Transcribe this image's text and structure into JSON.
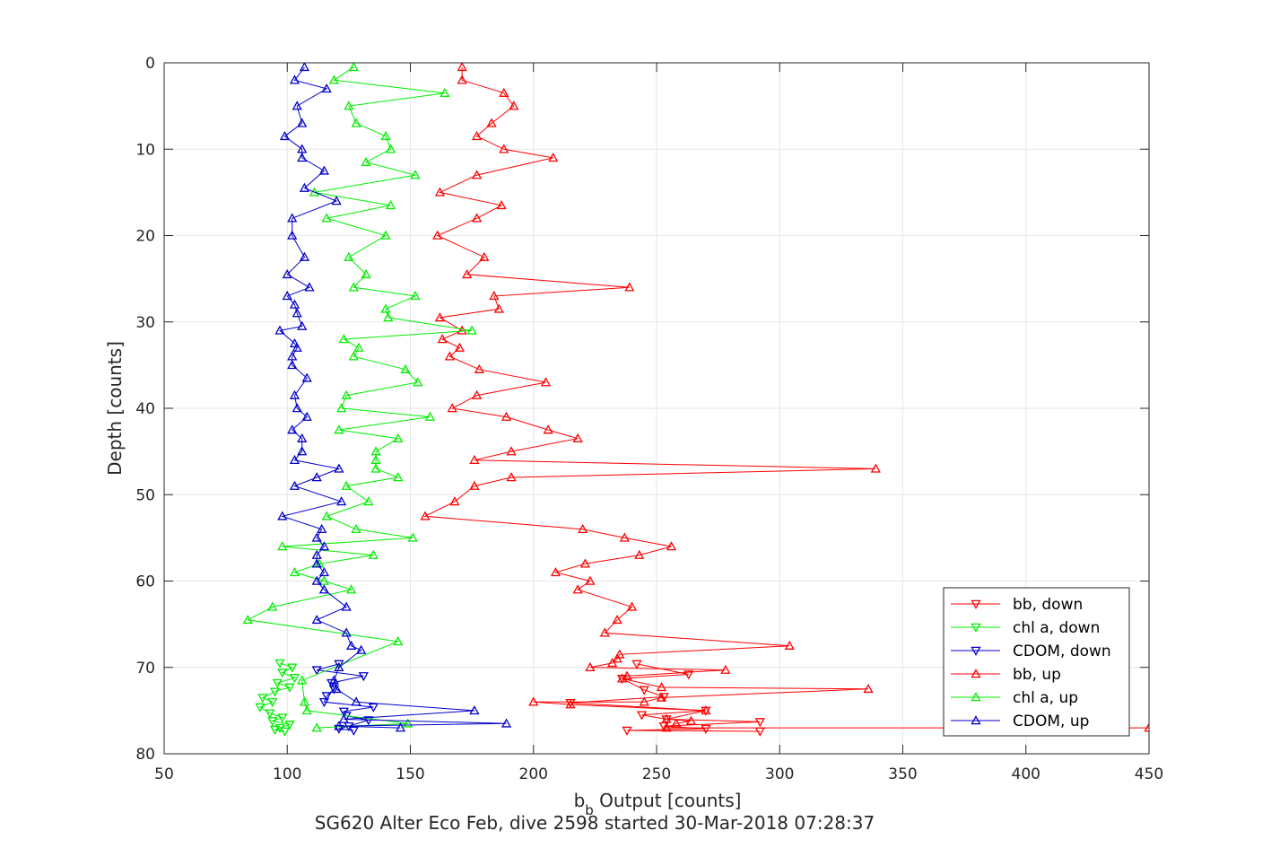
{
  "chart_data": {
    "type": "line",
    "title": "SG620 Alter Eco Feb, dive 2598 started 30-Mar-2018 07:28:37",
    "xlabel": {
      "main": "b",
      "sub": "b",
      "rest": " Output [counts]"
    },
    "ylabel": "Depth [counts]",
    "xlim": [
      50,
      450
    ],
    "ylim": [
      0,
      80
    ],
    "y_reversed": true,
    "grid": true,
    "legend_position": "bottom-right",
    "xticks": [
      "50",
      "100",
      "150",
      "200",
      "250",
      "300",
      "350",
      "400",
      "450"
    ],
    "yticks": [
      "0",
      "10",
      "20",
      "30",
      "40",
      "50",
      "60",
      "70",
      "80"
    ],
    "series": [
      {
        "name": "bb, down",
        "color": "#ff0000",
        "marker": "triangle-down",
        "points": [
          [
            242,
            69.6
          ],
          [
            263,
            70.8
          ],
          [
            236,
            71.3
          ],
          [
            245,
            72.6
          ],
          [
            253,
            73.4
          ],
          [
            215,
            74.1
          ],
          [
            270,
            75.0
          ],
          [
            244,
            75.5
          ],
          [
            254,
            76.0
          ],
          [
            292,
            76.3
          ],
          [
            253,
            76.8
          ],
          [
            270,
            77.1
          ],
          [
            238,
            77.3
          ],
          [
            292,
            77.4
          ]
        ]
      },
      {
        "name": "chl a, down",
        "color": "#00ee00",
        "marker": "triangle-down",
        "points": [
          [
            97,
            69.5
          ],
          [
            102,
            70.0
          ],
          [
            98,
            70.6
          ],
          [
            103,
            71.2
          ],
          [
            96,
            71.8
          ],
          [
            101,
            72.3
          ],
          [
            95,
            72.8
          ],
          [
            90,
            73.5
          ],
          [
            94,
            74.0
          ],
          [
            89,
            74.6
          ],
          [
            93,
            75.3
          ],
          [
            98,
            75.8
          ],
          [
            94,
            76.2
          ],
          [
            101,
            76.6
          ],
          [
            97,
            77.0
          ],
          [
            95,
            77.2
          ],
          [
            99,
            77.4
          ]
        ]
      },
      {
        "name": "CDOM, down",
        "color": "#0000cc",
        "marker": "triangle-down",
        "points": [
          [
            121,
            69.6
          ],
          [
            112,
            70.3
          ],
          [
            131,
            71.0
          ],
          [
            118,
            71.8
          ],
          [
            119,
            72.5
          ],
          [
            116,
            73.3
          ],
          [
            115,
            74.0
          ],
          [
            135,
            74.6
          ],
          [
            123,
            75.1
          ],
          [
            124,
            75.6
          ],
          [
            133,
            76.1
          ],
          [
            125,
            76.8
          ],
          [
            121,
            77.1
          ],
          [
            127,
            77.3
          ]
        ]
      },
      {
        "name": "bb, up",
        "color": "#ff0000",
        "marker": "triangle-up",
        "points": [
          [
            171,
            0.5
          ],
          [
            171,
            2.0
          ],
          [
            188,
            3.5
          ],
          [
            192,
            5.0
          ],
          [
            183,
            7.0
          ],
          [
            177,
            8.5
          ],
          [
            188,
            10.0
          ],
          [
            208,
            11.0
          ],
          [
            177,
            13.0
          ],
          [
            162,
            15.0
          ],
          [
            187,
            16.5
          ],
          [
            177,
            18.0
          ],
          [
            161,
            20.0
          ],
          [
            180,
            22.5
          ],
          [
            173,
            24.5
          ],
          [
            239,
            26.0
          ],
          [
            184,
            27.0
          ],
          [
            186,
            28.5
          ],
          [
            162,
            29.5
          ],
          [
            171,
            31.0
          ],
          [
            163,
            32.0
          ],
          [
            170,
            33.0
          ],
          [
            166,
            34.0
          ],
          [
            178,
            35.5
          ],
          [
            205,
            37.0
          ],
          [
            177,
            38.5
          ],
          [
            167,
            40.0
          ],
          [
            189,
            41.0
          ],
          [
            206,
            42.5
          ],
          [
            218,
            43.5
          ],
          [
            191,
            45.0
          ],
          [
            176,
            46.0
          ],
          [
            339,
            47.0
          ],
          [
            191,
            48.0
          ],
          [
            176,
            49.0
          ],
          [
            168,
            50.8
          ],
          [
            156,
            52.5
          ],
          [
            220,
            54.0
          ],
          [
            237,
            55.0
          ],
          [
            256,
            56.0
          ],
          [
            243,
            57.0
          ],
          [
            221,
            58.0
          ],
          [
            209,
            59.0
          ],
          [
            223,
            60.0
          ],
          [
            218,
            61.0
          ],
          [
            240,
            63.0
          ],
          [
            234,
            64.5
          ],
          [
            229,
            66.0
          ],
          [
            304,
            67.5
          ],
          [
            235,
            68.5
          ],
          [
            234,
            69.0
          ],
          [
            232,
            69.5
          ],
          [
            223,
            70.0
          ],
          [
            278,
            70.3
          ],
          [
            238,
            71.0
          ],
          [
            236,
            71.3
          ],
          [
            252,
            72.3
          ],
          [
            336,
            72.5
          ],
          [
            252,
            73.5
          ],
          [
            245,
            74.0
          ],
          [
            200,
            74.0
          ],
          [
            215,
            74.3
          ],
          [
            270,
            75.0
          ],
          [
            254,
            76.0
          ],
          [
            264,
            76.2
          ],
          [
            258,
            76.5
          ],
          [
            254,
            77.0
          ],
          [
            450,
            77.0
          ]
        ]
      },
      {
        "name": "chl a, up",
        "color": "#00ee00",
        "marker": "triangle-up",
        "points": [
          [
            127,
            0.5
          ],
          [
            119,
            2.0
          ],
          [
            164,
            3.5
          ],
          [
            125,
            5.0
          ],
          [
            128,
            7.0
          ],
          [
            140,
            8.5
          ],
          [
            142,
            10.0
          ],
          [
            132,
            11.5
          ],
          [
            152,
            13.0
          ],
          [
            111,
            15.0
          ],
          [
            142,
            16.5
          ],
          [
            116,
            18.0
          ],
          [
            140,
            20.0
          ],
          [
            125,
            22.5
          ],
          [
            132,
            24.5
          ],
          [
            127,
            26.0
          ],
          [
            152,
            27.0
          ],
          [
            140,
            28.5
          ],
          [
            141,
            29.5
          ],
          [
            175,
            31.0
          ],
          [
            123,
            32.0
          ],
          [
            129,
            33.0
          ],
          [
            127,
            34.0
          ],
          [
            148,
            35.5
          ],
          [
            153,
            37.0
          ],
          [
            124,
            38.5
          ],
          [
            122,
            40.0
          ],
          [
            158,
            41.0
          ],
          [
            121,
            42.5
          ],
          [
            145,
            43.5
          ],
          [
            136,
            45.0
          ],
          [
            136,
            46.0
          ],
          [
            136,
            47.0
          ],
          [
            145,
            48.0
          ],
          [
            124,
            49.0
          ],
          [
            133,
            50.8
          ],
          [
            116,
            52.5
          ],
          [
            128,
            54.0
          ],
          [
            151,
            55.0
          ],
          [
            98,
            56.0
          ],
          [
            135,
            57.0
          ],
          [
            113,
            58.0
          ],
          [
            103,
            59.0
          ],
          [
            115,
            60.0
          ],
          [
            126,
            61.0
          ],
          [
            94,
            63.0
          ],
          [
            84,
            64.5
          ],
          [
            145,
            67.0
          ],
          [
            106,
            71.5
          ],
          [
            107,
            74.0
          ],
          [
            108,
            75.0
          ],
          [
            149,
            76.5
          ],
          [
            112,
            77.0
          ]
        ]
      },
      {
        "name": "CDOM, up",
        "color": "#0000cc",
        "marker": "triangle-up",
        "points": [
          [
            107,
            0.5
          ],
          [
            103,
            2.0
          ],
          [
            116,
            3.0
          ],
          [
            104,
            5.0
          ],
          [
            106,
            7.0
          ],
          [
            99,
            8.5
          ],
          [
            106,
            10.0
          ],
          [
            106,
            11.0
          ],
          [
            115,
            12.5
          ],
          [
            107,
            14.5
          ],
          [
            120,
            16.0
          ],
          [
            102,
            18.0
          ],
          [
            102,
            20.0
          ],
          [
            107,
            22.5
          ],
          [
            100,
            24.5
          ],
          [
            109,
            26.0
          ],
          [
            100,
            27.0
          ],
          [
            103,
            28.0
          ],
          [
            104,
            29.0
          ],
          [
            106,
            30.5
          ],
          [
            97,
            31.0
          ],
          [
            103,
            32.5
          ],
          [
            104,
            33.0
          ],
          [
            102,
            34.0
          ],
          [
            102,
            35.0
          ],
          [
            108,
            36.5
          ],
          [
            103,
            38.5
          ],
          [
            104,
            40.0
          ],
          [
            108,
            41.0
          ],
          [
            102,
            42.5
          ],
          [
            106,
            43.5
          ],
          [
            106,
            45.0
          ],
          [
            103,
            46.0
          ],
          [
            121,
            47.0
          ],
          [
            112,
            48.0
          ],
          [
            103,
            49.0
          ],
          [
            122,
            50.8
          ],
          [
            98,
            52.5
          ],
          [
            114,
            54.0
          ],
          [
            112,
            55.0
          ],
          [
            115,
            56.0
          ],
          [
            112,
            57.0
          ],
          [
            112,
            58.0
          ],
          [
            115,
            59.0
          ],
          [
            112,
            60.0
          ],
          [
            115,
            61.0
          ],
          [
            124,
            63.0
          ],
          [
            112,
            64.5
          ],
          [
            124,
            66.0
          ],
          [
            126,
            67.5
          ],
          [
            130,
            68.0
          ],
          [
            121,
            70.0
          ],
          [
            119,
            71.5
          ],
          [
            120,
            72.5
          ],
          [
            128,
            74.0
          ],
          [
            176,
            75.0
          ],
          [
            123,
            76.0
          ],
          [
            189,
            76.5
          ],
          [
            121,
            76.8
          ],
          [
            146,
            77.0
          ]
        ]
      }
    ]
  }
}
